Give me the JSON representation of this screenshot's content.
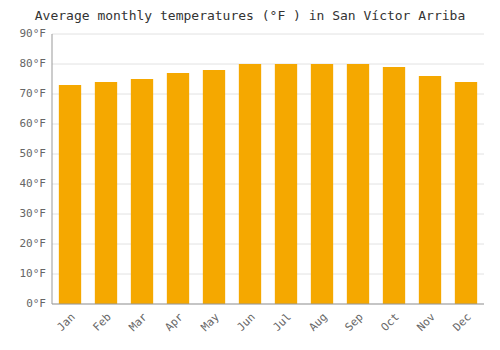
{
  "chart_data": {
    "type": "bar",
    "title": "Average monthly temperatures (°F ) in San Víctor Arriba",
    "categories": [
      "Jan",
      "Feb",
      "Mar",
      "Apr",
      "May",
      "Jun",
      "Jul",
      "Aug",
      "Sep",
      "Oct",
      "Nov",
      "Dec"
    ],
    "values": [
      73,
      74,
      75,
      77,
      78,
      80,
      80,
      80,
      80,
      79,
      76,
      74
    ],
    "color": "#F5A800",
    "ylim": [
      0,
      90
    ],
    "yticks": [
      {
        "value": 0,
        "label": "0°F"
      },
      {
        "value": 10,
        "label": "10°F"
      },
      {
        "value": 20,
        "label": "20°F"
      },
      {
        "value": 30,
        "label": "30°F"
      },
      {
        "value": 40,
        "label": "40°F"
      },
      {
        "value": 50,
        "label": "50°F"
      },
      {
        "value": 60,
        "label": "60°F"
      },
      {
        "value": 70,
        "label": "70°F"
      },
      {
        "value": 80,
        "label": "80°F"
      },
      {
        "value": 90,
        "label": "90°F"
      }
    ],
    "grid": true
  }
}
